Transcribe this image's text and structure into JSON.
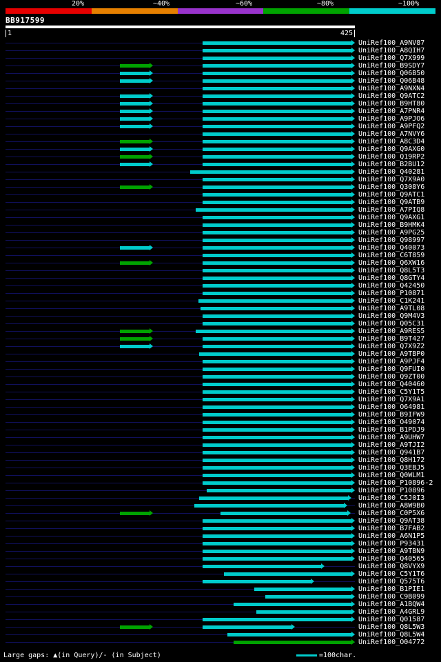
{
  "chart_data": {
    "type": "bar",
    "orientation": "horizontal",
    "title": "BB917599",
    "xlabel": "query position",
    "xlim": [
      1,
      425
    ],
    "grid": false,
    "identity_key": {
      "labels": [
        "20%",
        "~40%",
        "~60%",
        "~80%",
        "~100%"
      ],
      "colors": [
        "#e60000",
        "#e68000",
        "#9933cc",
        "#00a300",
        "#00cccc"
      ]
    },
    "colors": {
      "c": "#00cccc",
      "g": "#00a300"
    },
    "categories": [
      "UniRef100_A9NV87",
      "UniRef100_A8QIH7",
      "UniRef100_Q7X999",
      "UniRef100_B9SDY7",
      "UniRef100_Q06B50",
      "UniRef100_Q06B48",
      "UniRef100_A9NXN4",
      "UniRef100_Q9ATC2",
      "UniRef100_B9HT80",
      "UniRef100_A7PNR4",
      "UniRef100_A9PJO6",
      "UniRef100_A9PFQ2",
      "UniRef100_A7NVY6",
      "UniRef100_A8C3D4",
      "UniRef100_Q9AXG0",
      "UniRef100_Q19RP2",
      "UniRef100_B2BU12",
      "UniRef100_Q40281",
      "UniRef100_Q7X9A0",
      "UniRef100_Q308Y6",
      "UniRef100_Q9ATC1",
      "UniRef100_Q9ATB9",
      "UniRef100_A7PIQ8",
      "UniRef100_Q9AXG1",
      "UniRef100_B9HMK4",
      "UniRef100_A9PG25",
      "UniRef100_Q98997",
      "UniRef100_Q40073",
      "UniRef100_C6T859",
      "UniRef100_Q6XW16",
      "UniRef100_Q8L5T3",
      "UniRef100_Q8GTY4",
      "UniRef100_Q42450",
      "UniRef100_P10871",
      "UniRef100_C1K241",
      "UniRef100_A9TL08",
      "UniRef100_Q9M4V3",
      "UniRef100_Q05C31",
      "UniRef100_A9RES5",
      "UniRef100_B9T427",
      "UniRef100_Q7X9Z2",
      "UniRef100_A9TBP0",
      "UniRef100_A9PJF4",
      "UniRef100_Q9FUI0",
      "UniRef100_Q9ZT00",
      "UniRef100_Q40460",
      "UniRef100_C5Y1T5",
      "UniRef100_Q7X9A1",
      "UniRef100_O64981",
      "UniRef100_B9IFW9",
      "UniRef100_O49074",
      "UniRef100_B1PDJ9",
      "UniRef100_A9UHW7",
      "UniRef100_A9TJI2",
      "UniRef100_Q941B7",
      "UniRef100_Q8H172",
      "UniRef100_Q3EBJ5",
      "UniRef100_Q0WLM1",
      "UniRef100_P10896-2",
      "UniRef100_P10896",
      "UniRef100_C5J0I3",
      "UniRef100_A8W9B0",
      "UniRef100_C0P5X6",
      "UniRef100_Q9AT38",
      "UniRef100_B7FAB2",
      "UniRef100_A6N1P5",
      "UniRef100_P93431",
      "UniRef100_A9TBN9",
      "UniRef100_Q40565",
      "UniRef100_Q8VYX9",
      "UniRef100_C5Y1T6",
      "UniRef100_Q575T6",
      "UniRef100_B1PIE1",
      "UniRef100_C9B099",
      "UniRef100_A1BQW4",
      "UniRef100_A4GRL9",
      "UniRef100_Q01587",
      "UniRef100_Q8L5W3",
      "UniRef100_Q8L5W4",
      "UniRef100_O04772"
    ],
    "bars": [
      [
        [
          240,
          425,
          "c"
        ]
      ],
      [
        [
          240,
          425,
          "c"
        ]
      ],
      [
        [
          240,
          425,
          "c"
        ]
      ],
      [
        [
          140,
          180,
          "g"
        ],
        [
          240,
          425,
          "c"
        ]
      ],
      [
        [
          140,
          180,
          "c"
        ],
        [
          240,
          425,
          "c"
        ]
      ],
      [
        [
          140,
          180,
          "c"
        ],
        [
          240,
          425,
          "c"
        ]
      ],
      [
        [
          240,
          425,
          "c"
        ]
      ],
      [
        [
          140,
          180,
          "c"
        ],
        [
          240,
          425,
          "c"
        ]
      ],
      [
        [
          140,
          180,
          "c"
        ],
        [
          240,
          425,
          "c"
        ]
      ],
      [
        [
          140,
          180,
          "c"
        ],
        [
          240,
          425,
          "c"
        ]
      ],
      [
        [
          140,
          180,
          "c"
        ],
        [
          240,
          425,
          "c"
        ]
      ],
      [
        [
          140,
          180,
          "c"
        ],
        [
          240,
          425,
          "c"
        ]
      ],
      [
        [
          240,
          425,
          "c"
        ]
      ],
      [
        [
          140,
          180,
          "g"
        ],
        [
          240,
          425,
          "c"
        ]
      ],
      [
        [
          140,
          180,
          "c"
        ],
        [
          240,
          425,
          "c"
        ]
      ],
      [
        [
          140,
          180,
          "g"
        ],
        [
          240,
          425,
          "c"
        ]
      ],
      [
        [
          140,
          180,
          "c"
        ],
        [
          240,
          425,
          "c"
        ]
      ],
      [
        [
          225,
          425,
          "c"
        ]
      ],
      [
        [
          240,
          425,
          "c"
        ]
      ],
      [
        [
          140,
          180,
          "g"
        ],
        [
          240,
          425,
          "c"
        ]
      ],
      [
        [
          240,
          425,
          "c"
        ]
      ],
      [
        [
          240,
          425,
          "c"
        ]
      ],
      [
        [
          232,
          425,
          "c"
        ]
      ],
      [
        [
          240,
          425,
          "c"
        ]
      ],
      [
        [
          240,
          425,
          "c"
        ]
      ],
      [
        [
          240,
          425,
          "c"
        ]
      ],
      [
        [
          240,
          425,
          "c"
        ]
      ],
      [
        [
          140,
          180,
          "c"
        ],
        [
          240,
          425,
          "c"
        ]
      ],
      [
        [
          240,
          425,
          "c"
        ]
      ],
      [
        [
          140,
          180,
          "g"
        ],
        [
          240,
          425,
          "c"
        ]
      ],
      [
        [
          240,
          425,
          "c"
        ]
      ],
      [
        [
          240,
          425,
          "c"
        ]
      ],
      [
        [
          240,
          425,
          "c"
        ]
      ],
      [
        [
          240,
          425,
          "c"
        ]
      ],
      [
        [
          235,
          425,
          "c"
        ]
      ],
      [
        [
          238,
          425,
          "c"
        ]
      ],
      [
        [
          240,
          425,
          "c"
        ]
      ],
      [
        [
          240,
          425,
          "c"
        ]
      ],
      [
        [
          140,
          180,
          "g"
        ],
        [
          232,
          425,
          "c"
        ]
      ],
      [
        [
          140,
          180,
          "g"
        ],
        [
          240,
          425,
          "c"
        ]
      ],
      [
        [
          140,
          180,
          "c"
        ],
        [
          240,
          425,
          "c"
        ]
      ],
      [
        [
          236,
          425,
          "c"
        ]
      ],
      [
        [
          240,
          425,
          "c"
        ]
      ],
      [
        [
          240,
          425,
          "c"
        ]
      ],
      [
        [
          240,
          425,
          "c"
        ]
      ],
      [
        [
          240,
          425,
          "c"
        ]
      ],
      [
        [
          240,
          425,
          "c"
        ]
      ],
      [
        [
          240,
          425,
          "c"
        ]
      ],
      [
        [
          240,
          425,
          "c"
        ]
      ],
      [
        [
          240,
          425,
          "c"
        ]
      ],
      [
        [
          240,
          425,
          "c"
        ]
      ],
      [
        [
          240,
          425,
          "c"
        ]
      ],
      [
        [
          240,
          425,
          "c"
        ]
      ],
      [
        [
          240,
          425,
          "c"
        ]
      ],
      [
        [
          240,
          425,
          "c"
        ]
      ],
      [
        [
          240,
          425,
          "c"
        ]
      ],
      [
        [
          240,
          425,
          "c"
        ]
      ],
      [
        [
          240,
          425,
          "c"
        ]
      ],
      [
        [
          240,
          425,
          "c"
        ]
      ],
      [
        [
          245,
          425,
          "c"
        ]
      ],
      [
        [
          236,
          421,
          "c"
        ]
      ],
      [
        [
          230,
          416,
          "c"
        ]
      ],
      [
        [
          140,
          180,
          "g"
        ],
        [
          262,
          420,
          "c"
        ]
      ],
      [
        [
          240,
          425,
          "c"
        ]
      ],
      [
        [
          240,
          425,
          "c"
        ]
      ],
      [
        [
          240,
          425,
          "c"
        ]
      ],
      [
        [
          240,
          425,
          "c"
        ]
      ],
      [
        [
          240,
          425,
          "c"
        ]
      ],
      [
        [
          240,
          425,
          "c"
        ]
      ],
      [
        [
          240,
          388,
          "c"
        ]
      ],
      [
        [
          266,
          425,
          "c"
        ]
      ],
      [
        [
          240,
          376,
          "c"
        ]
      ],
      [
        [
          303,
          425,
          "c"
        ]
      ],
      [
        [
          316,
          425,
          "c"
        ]
      ],
      [
        [
          278,
          425,
          "c"
        ]
      ],
      [
        [
          305,
          425,
          "c"
        ]
      ],
      [
        [
          240,
          425,
          "c"
        ]
      ],
      [
        [
          140,
          180,
          "g"
        ],
        [
          240,
          352,
          "c"
        ]
      ],
      [
        [
          270,
          425,
          "c"
        ]
      ],
      [
        [
          278,
          425,
          "g"
        ]
      ]
    ]
  },
  "header": {
    "ruler": {
      "start": "1",
      "end": "425"
    }
  },
  "legend": {
    "large_gaps_text": "Large gaps: ▲(in Query)/- (in Subject)",
    "scale_marker_text": "=100char."
  }
}
